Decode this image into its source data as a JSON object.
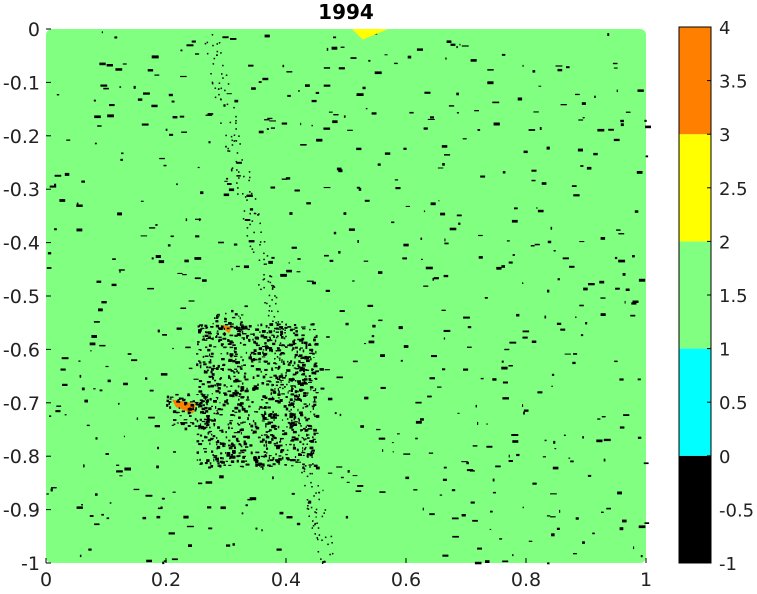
{
  "chart_data": {
    "type": "heatmap",
    "title": "1994",
    "xlabel": "",
    "ylabel": "",
    "xlim": [
      0,
      1
    ],
    "ylim": [
      -1,
      0
    ],
    "xticks": [
      "0",
      "0.2",
      "0.4",
      "0.6",
      "0.8",
      "1"
    ],
    "yticks": [
      "0",
      "-0.1",
      "-0.2",
      "-0.3",
      "-0.4",
      "-0.5",
      "-0.6",
      "-0.7",
      "-0.8",
      "-0.9",
      "-1"
    ],
    "colorbar": {
      "range": [
        -1,
        4
      ],
      "ticks": [
        "4",
        "3.5",
        "3",
        "2.5",
        "2",
        "1.5",
        "1",
        "0.5",
        "0",
        "-0.5",
        "-1"
      ],
      "levels": [
        {
          "from": -1,
          "to": 0,
          "color": "#000000"
        },
        {
          "from": 0,
          "to": 1,
          "color": "#00ffff"
        },
        {
          "from": 1,
          "to": 2,
          "color": "#80ff80"
        },
        {
          "from": 2,
          "to": 3,
          "color": "#ffff00"
        },
        {
          "from": 3,
          "to": 4,
          "color": "#ff8000"
        }
      ]
    },
    "background_value": 1.5,
    "features": [
      {
        "kind": "yellow-region",
        "value": 2.5,
        "x": [
          0.51,
          0.57
        ],
        "y": [
          -0.02,
          0.0
        ]
      },
      {
        "kind": "orange-region",
        "value": 3.5,
        "x": [
          0.21,
          0.25
        ],
        "y": [
          -0.72,
          -0.69
        ]
      },
      {
        "kind": "orange-region",
        "value": 3.5,
        "x": [
          0.29,
          0.31
        ],
        "y": [
          -0.57,
          -0.55
        ]
      },
      {
        "kind": "dark-cluster",
        "value": -0.5,
        "x": [
          0.25,
          0.45
        ],
        "y": [
          -0.82,
          -0.55
        ]
      },
      {
        "kind": "dark-cluster",
        "value": -0.5,
        "x": [
          0.2,
          0.27
        ],
        "y": [
          -0.75,
          -0.68
        ]
      },
      {
        "kind": "dark-cluster",
        "value": -0.5,
        "x": [
          0.28,
          0.33
        ],
        "y": [
          -0.57,
          -0.53
        ]
      }
    ]
  }
}
